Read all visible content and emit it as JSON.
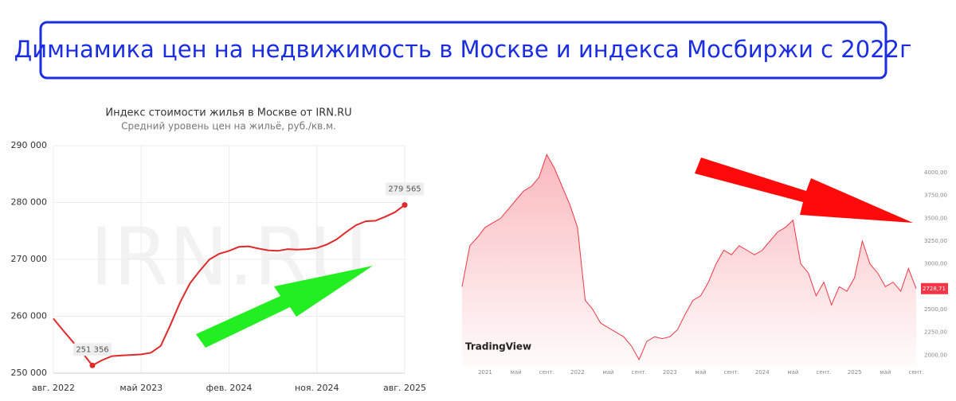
{
  "header": {
    "title": "Димнамика цен на недвижимость в Москве и индекса Мосбиржи с 2022г"
  },
  "chart_data": [
    {
      "type": "line",
      "title": "Индекс стоимости жилья в Москве от IRN.RU",
      "subtitle": "Средний уровень цен на жильё, руб./кв.м.",
      "watermark": "IRN.RU",
      "color": "#e02a2a",
      "grid": true,
      "categories": [
        "авг. 2022",
        null,
        null,
        null,
        null,
        null,
        null,
        null,
        null,
        "май 2023",
        null,
        null,
        null,
        null,
        null,
        null,
        null,
        null,
        "фев. 2024",
        null,
        null,
        null,
        null,
        null,
        null,
        null,
        null,
        "ноя. 2024",
        null,
        null,
        null,
        null,
        null,
        null,
        null,
        null,
        "авг. 2025"
      ],
      "values": [
        259600,
        257500,
        255500,
        253500,
        251356,
        252300,
        253000,
        253100,
        253200,
        253300,
        253600,
        254800,
        258500,
        262500,
        265800,
        268000,
        270000,
        271000,
        271500,
        272200,
        272300,
        271900,
        271600,
        271500,
        271800,
        271700,
        271800,
        272000,
        272600,
        273500,
        274800,
        276000,
        276700,
        276800,
        277500,
        278300,
        279565
      ],
      "value_labels": [
        null,
        null,
        null,
        null,
        "251 356",
        null,
        null,
        null,
        null,
        null,
        null,
        null,
        null,
        null,
        null,
        null,
        null,
        null,
        null,
        null,
        null,
        null,
        null,
        null,
        null,
        null,
        null,
        null,
        null,
        null,
        null,
        null,
        null,
        null,
        null,
        null,
        "279 565"
      ],
      "ylim": [
        250000,
        290000
      ],
      "yticks": [
        {
          "value": 250000,
          "label": "250 000"
        },
        {
          "value": 260000,
          "label": "260 000"
        },
        {
          "value": 270000,
          "label": "270 000"
        },
        {
          "value": 280000,
          "label": "280 000"
        },
        {
          "value": 290000,
          "label": "290 000"
        }
      ]
    },
    {
      "type": "area",
      "logo": "TradingView",
      "color": "#f23645",
      "grid": false,
      "categories": [
        null,
        null,
        null,
        "2021",
        null,
        null,
        null,
        "май",
        null,
        null,
        null,
        "сент.",
        null,
        null,
        null,
        "2022",
        null,
        null,
        null,
        "май",
        null,
        null,
        null,
        "сент.",
        null,
        null,
        null,
        "2023",
        null,
        null,
        null,
        "май",
        null,
        null,
        null,
        "сент.",
        null,
        null,
        null,
        "2024",
        null,
        null,
        null,
        "май",
        null,
        null,
        null,
        "сент.",
        null,
        null,
        null,
        "2025",
        null,
        null,
        null,
        "май",
        null,
        null,
        null,
        "сент."
      ],
      "values": [
        2750,
        3200,
        3290,
        3400,
        3450,
        3500,
        3600,
        3700,
        3800,
        3850,
        3950,
        4200,
        4050,
        3850,
        3650,
        3400,
        2600,
        2500,
        2350,
        2300,
        2250,
        2200,
        2100,
        1950,
        2150,
        2200,
        2180,
        2200,
        2280,
        2450,
        2600,
        2650,
        2800,
        3000,
        3150,
        3100,
        3200,
        3150,
        3100,
        3150,
        3250,
        3350,
        3400,
        3480,
        3000,
        2900,
        2650,
        2800,
        2550,
        2750,
        2700,
        2850,
        3250,
        3000,
        2900,
        2750,
        2800,
        2700,
        2950,
        2728.71
      ],
      "value_labels": [
        null,
        null,
        null,
        null,
        null,
        null,
        null,
        null,
        null,
        null,
        null,
        null,
        null,
        null,
        null,
        null,
        null,
        null,
        null,
        null,
        null,
        null,
        null,
        null,
        null,
        null,
        null,
        null,
        null,
        null,
        null,
        null,
        null,
        null,
        null,
        null,
        null,
        null,
        null,
        null,
        null,
        null,
        null,
        null,
        null,
        null,
        null,
        null,
        null,
        null,
        null,
        null,
        null,
        null,
        null,
        null,
        null,
        null,
        null,
        "2728,71"
      ],
      "ylim": [
        1880,
        4280
      ],
      "yticks": [
        {
          "value": 2000,
          "label": "2000,00"
        },
        {
          "value": 2250,
          "label": "2250,00"
        },
        {
          "value": 2500,
          "label": "2500,00"
        },
        {
          "value": 2750,
          "label": "2750,00"
        },
        {
          "value": 3000,
          "label": "3000,00"
        },
        {
          "value": 3250,
          "label": "3250,00"
        },
        {
          "value": 3500,
          "label": "3500,00"
        },
        {
          "value": 3750,
          "label": "3750,00"
        },
        {
          "value": 4000,
          "label": "4000,00"
        }
      ]
    }
  ]
}
